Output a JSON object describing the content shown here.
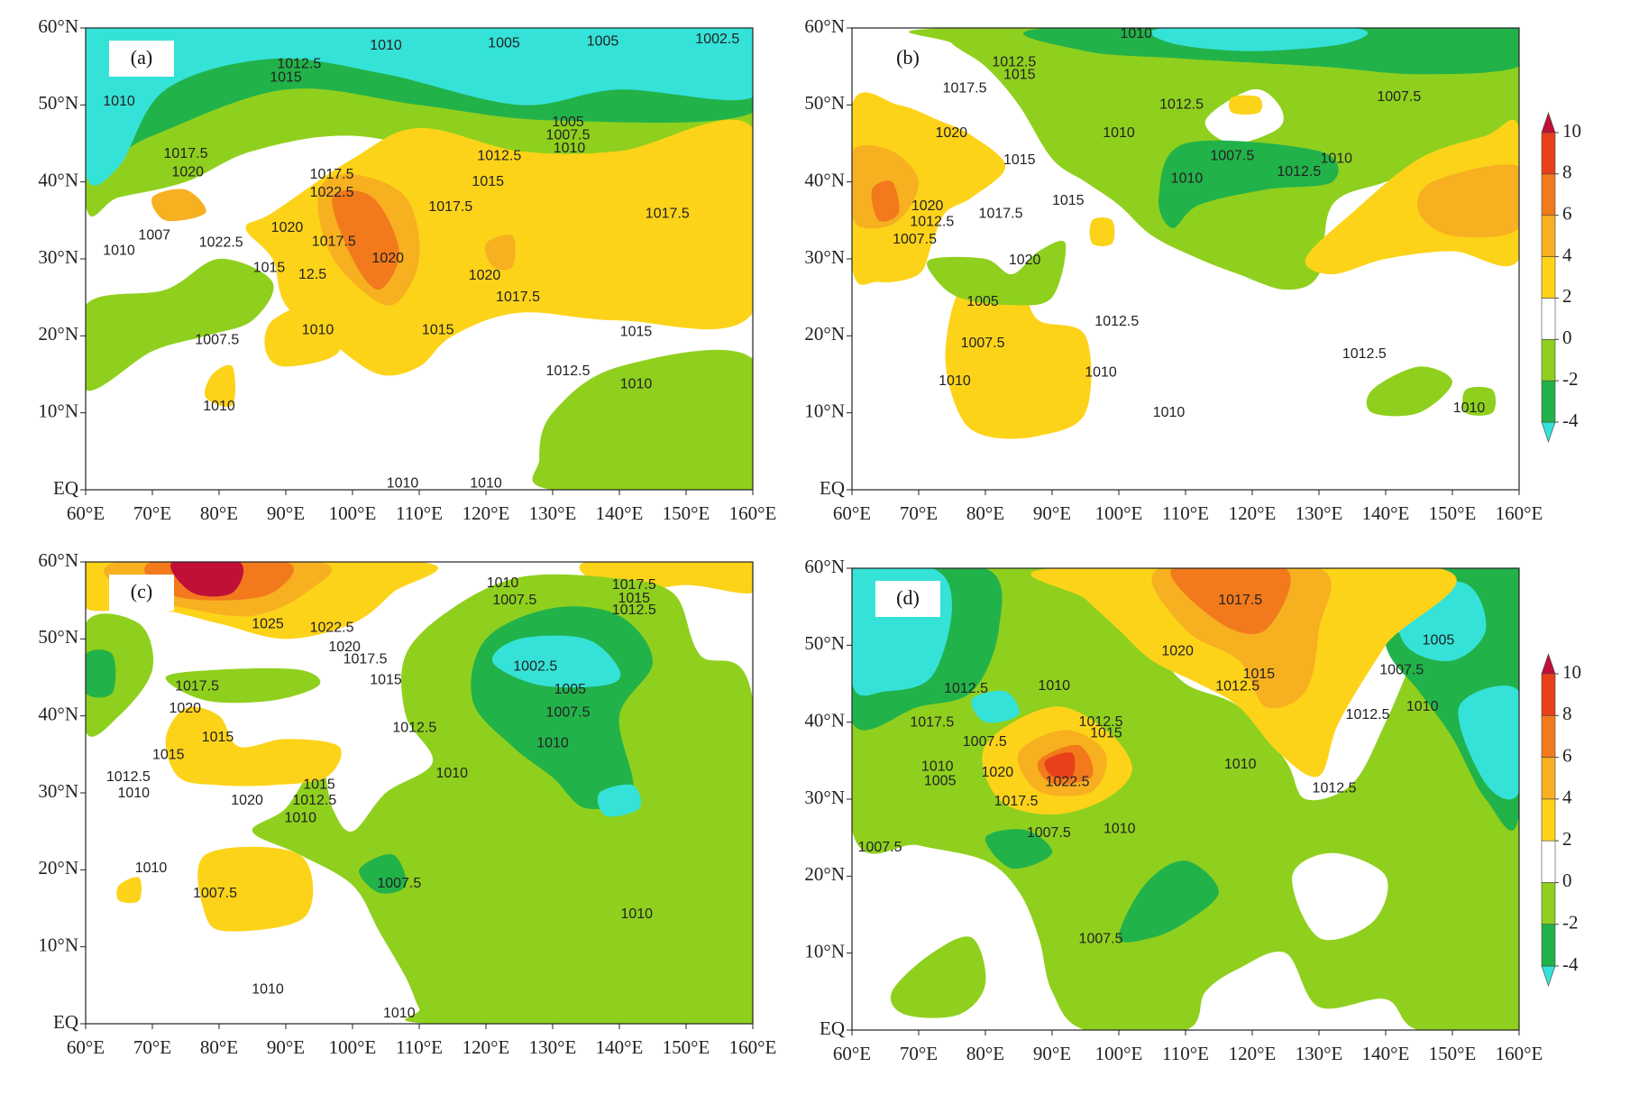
{
  "panels": [
    {
      "label": "(a)",
      "contour_labels": [
        "1010",
        "1005",
        "1005",
        "1002.5",
        "1012.5",
        "1015",
        "1010",
        "1005",
        "1007.5",
        "1010",
        "1012.5",
        "1017.5",
        "1020",
        "1017.5",
        "1022.5",
        "1015",
        "1017.5",
        "1017.5",
        "1007",
        "1020",
        "1022.5",
        "1017.5",
        "1010",
        "1020",
        "1015",
        "12.5",
        "1020",
        "1017.5",
        "1010",
        "1015",
        "1015",
        "1007.5",
        "1012.5",
        "1010",
        "1010",
        "1010",
        "1010"
      ]
    },
    {
      "label": "(b)",
      "contour_labels": [
        "1010",
        "1012.5",
        "1015",
        "1017.5",
        "1012.5",
        "1007.5",
        "1010",
        "1020",
        "1015",
        "1007.5",
        "1012.5",
        "1010",
        "1010",
        "1020",
        "1015",
        "1012.5",
        "1017.5",
        "1007.5",
        "1020",
        "1005",
        "1012.5",
        "1007.5",
        "1012.5",
        "1010",
        "1010",
        "1010",
        "1010"
      ]
    },
    {
      "label": "(c)",
      "contour_labels": [
        "1010",
        "1007.5",
        "1017.5",
        "1015",
        "1012.5",
        "1025",
        "1022.5",
        "1020",
        "1017.5",
        "1015",
        "1002.5",
        "1005",
        "1007.5",
        "1017.5",
        "1020",
        "1012.5",
        "1015",
        "1010",
        "1015",
        "1010",
        "1012.5",
        "1015",
        "1010",
        "1020",
        "1012.5",
        "1010",
        "1010",
        "1007.5",
        "1007.5",
        "1010",
        "1010",
        "1010"
      ]
    },
    {
      "label": "(d)",
      "contour_labels": [
        "1017.5",
        "1005",
        "1020",
        "1015",
        "1012.5",
        "1007.5",
        "1012.5",
        "1010",
        "1012.5",
        "1010",
        "1017.5",
        "1012.5",
        "1015",
        "1007.5",
        "1010",
        "1020",
        "1022.5",
        "1005",
        "1010",
        "1017.5",
        "1012.5",
        "1007.5",
        "1010",
        "1007.5",
        "1007.5"
      ]
    }
  ],
  "axes": {
    "xlim": [
      60,
      160
    ],
    "xticks": [
      {
        "value": 60,
        "label": "60°E"
      },
      {
        "value": 70,
        "label": "70°E"
      },
      {
        "value": 80,
        "label": "80°E"
      },
      {
        "value": 90,
        "label": "90°E"
      },
      {
        "value": 100,
        "label": "100°E"
      },
      {
        "value": 110,
        "label": "110°E"
      },
      {
        "value": 120,
        "label": "120°E"
      },
      {
        "value": 130,
        "label": "130°E"
      },
      {
        "value": 140,
        "label": "140°E"
      },
      {
        "value": 150,
        "label": "150°E"
      },
      {
        "value": 160,
        "label": "160°E"
      }
    ],
    "ylim": [
      0,
      60
    ],
    "yticks": [
      {
        "value": 0,
        "label": "EQ"
      },
      {
        "value": 10,
        "label": "10°N"
      },
      {
        "value": 20,
        "label": "20°N"
      },
      {
        "value": 30,
        "label": "30°N"
      },
      {
        "value": 40,
        "label": "40°N"
      },
      {
        "value": 50,
        "label": "50°N"
      },
      {
        "value": 60,
        "label": "60°N"
      }
    ]
  },
  "colorbar": {
    "ticks": [
      -4,
      -2,
      0,
      2,
      4,
      6,
      8,
      10
    ],
    "colors": [
      "#35e2d8",
      "#22b24a",
      "#8fd01e",
      "#ffffff",
      "#fdd31a",
      "#f7b020",
      "#f27a1c",
      "#e8401a",
      "#c01038"
    ]
  }
}
